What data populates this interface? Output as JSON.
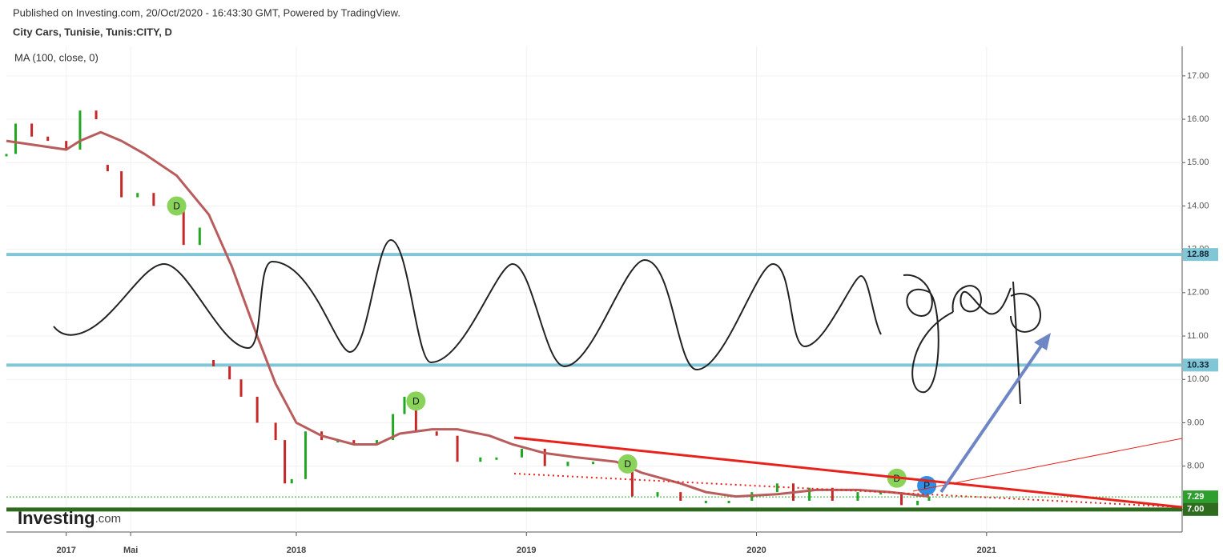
{
  "header": {
    "published": "Published on Investing.com, 20/Oct/2020 - 16:43:30 GMT, Powered by TradingView.",
    "symbol": "City Cars, Tunisie, Tunis:CITY, D",
    "indicator": "MA (100, close, 0)"
  },
  "logo": {
    "brand": "Investing",
    "suffix": ".com"
  },
  "chart_data": {
    "type": "ohlc-line",
    "xlim": [
      2016.74,
      2021.85
    ],
    "ylim": [
      6.48,
      17.68
    ],
    "xticks": [
      {
        "value": 2017,
        "label": "2017"
      },
      {
        "value": 2017.28,
        "label": "Mai"
      },
      {
        "value": 2018,
        "label": "2018"
      },
      {
        "value": 2019,
        "label": "2019"
      },
      {
        "value": 2020,
        "label": "2020"
      },
      {
        "value": 2021,
        "label": "2021"
      }
    ],
    "yticks": [
      {
        "value": 7,
        "label": "7.00"
      },
      {
        "value": 8,
        "label": "8.00"
      },
      {
        "value": 9,
        "label": "9.00"
      },
      {
        "value": 10,
        "label": "10.00"
      },
      {
        "value": 11,
        "label": "11.00"
      },
      {
        "value": 12,
        "label": "12.00"
      },
      {
        "value": 13,
        "label": "13.00"
      },
      {
        "value": 14,
        "label": "14.00"
      },
      {
        "value": 15,
        "label": "15.00"
      },
      {
        "value": 16,
        "label": "16.00"
      },
      {
        "value": 17,
        "label": "17.00"
      }
    ],
    "grid": true,
    "series": [
      {
        "name": "close",
        "style": "bars",
        "up_color": "#22a722",
        "down_color": "#c62828",
        "x": [
          2016.74,
          2016.78,
          2016.85,
          2016.92,
          2017.0,
          2017.06,
          2017.13,
          2017.18,
          2017.24,
          2017.31,
          2017.38,
          2017.46,
          2017.51,
          2017.58,
          2017.64,
          2017.71,
          2017.76,
          2017.83,
          2017.91,
          2017.95,
          2017.98,
          2018.04,
          2018.11,
          2018.18,
          2018.25,
          2018.35,
          2018.42,
          2018.47,
          2018.52,
          2018.61,
          2018.7,
          2018.8,
          2018.87,
          2018.98,
          2019.08,
          2019.18,
          2019.29,
          2019.41,
          2019.46,
          2019.57,
          2019.67,
          2019.78,
          2019.88,
          2019.98,
          2020.09,
          2020.16,
          2020.23,
          2020.33,
          2020.44,
          2020.54,
          2020.63,
          2020.7,
          2020.75
        ],
        "values": [
          15.2,
          15.9,
          15.6,
          15.5,
          15.3,
          16.2,
          16.0,
          14.8,
          14.2,
          14.3,
          14.0,
          13.9,
          13.1,
          13.5,
          10.3,
          10.0,
          9.6,
          9.0,
          8.6,
          7.6,
          7.7,
          8.8,
          8.6,
          8.6,
          8.5,
          8.6,
          9.2,
          9.6,
          8.8,
          8.7,
          8.1,
          8.2,
          8.2,
          8.4,
          8.0,
          8.1,
          8.1,
          8.1,
          7.3,
          7.4,
          7.2,
          7.2,
          7.2,
          7.4,
          7.6,
          7.2,
          7.5,
          7.2,
          7.4,
          7.4,
          7.1,
          7.2,
          7.3
        ]
      },
      {
        "name": "MA (100)",
        "style": "line",
        "color": "#b85c5c",
        "x": [
          2016.74,
          2017.0,
          2017.06,
          2017.15,
          2017.24,
          2017.34,
          2017.48,
          2017.62,
          2017.72,
          2017.83,
          2017.91,
          2018.0,
          2018.11,
          2018.25,
          2018.35,
          2018.45,
          2018.59,
          2018.7,
          2018.84,
          2018.94,
          2019.08,
          2019.22,
          2019.39,
          2019.5,
          2019.67,
          2019.78,
          2019.91,
          2020.09,
          2020.26,
          2020.44,
          2020.58,
          2020.75
        ],
        "values": [
          15.5,
          15.3,
          15.5,
          15.7,
          15.5,
          15.2,
          14.7,
          13.8,
          12.6,
          11.0,
          9.9,
          9.0,
          8.7,
          8.5,
          8.5,
          8.75,
          8.85,
          8.85,
          8.7,
          8.5,
          8.3,
          8.2,
          8.1,
          7.85,
          7.6,
          7.4,
          7.3,
          7.35,
          7.45,
          7.45,
          7.4,
          7.3
        ]
      }
    ],
    "hlines": [
      {
        "value": 12.88,
        "color": "#7fc6d6",
        "width": 4
      },
      {
        "value": 10.33,
        "color": "#7fc6d6",
        "width": 4
      },
      {
        "value": 7.29,
        "color": "#2e9e2e",
        "width": 1,
        "dashed": true
      },
      {
        "value": 7,
        "label": "7.00",
        "color": "#2e6b1f",
        "width": 5
      }
    ],
    "events": [
      {
        "label": "D",
        "x": 2017.48,
        "y": 14.0,
        "color": "#8ad35a"
      },
      {
        "label": "D",
        "x": 2018.52,
        "y": 9.5,
        "color": "#8ad35a"
      },
      {
        "label": "D",
        "x": 2019.44,
        "y": 8.05,
        "color": "#8ad35a"
      },
      {
        "label": "D",
        "x": 2020.61,
        "y": 7.72,
        "color": "#8ad35a"
      },
      {
        "label": "P",
        "x": 2020.74,
        "y": 7.55,
        "color": "#2d8ee6"
      }
    ]
  }
}
